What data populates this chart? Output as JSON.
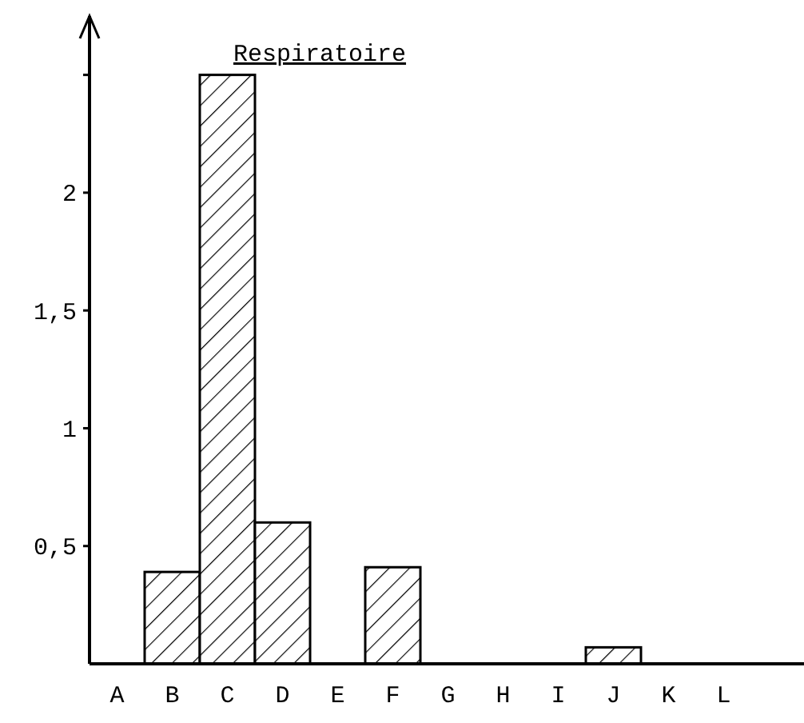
{
  "chart_data": {
    "type": "bar",
    "title": "Respiratoire",
    "categories": [
      "A",
      "B",
      "C",
      "D",
      "E",
      "F",
      "G",
      "H",
      "I",
      "J",
      "K",
      "L"
    ],
    "values": [
      null,
      0.39,
      2.5,
      0.6,
      null,
      0.41,
      null,
      null,
      null,
      0.07,
      null,
      null
    ],
    "color": "#000000",
    "ylim": [
      0,
      2.75
    ],
    "yticks": [
      {
        "value": 0.5,
        "label": "0,5"
      },
      1,
      {
        "value": 1.5,
        "label": "1,5"
      },
      2,
      {
        "value": 2.5,
        "label": null
      }
    ],
    "grid": false
  }
}
